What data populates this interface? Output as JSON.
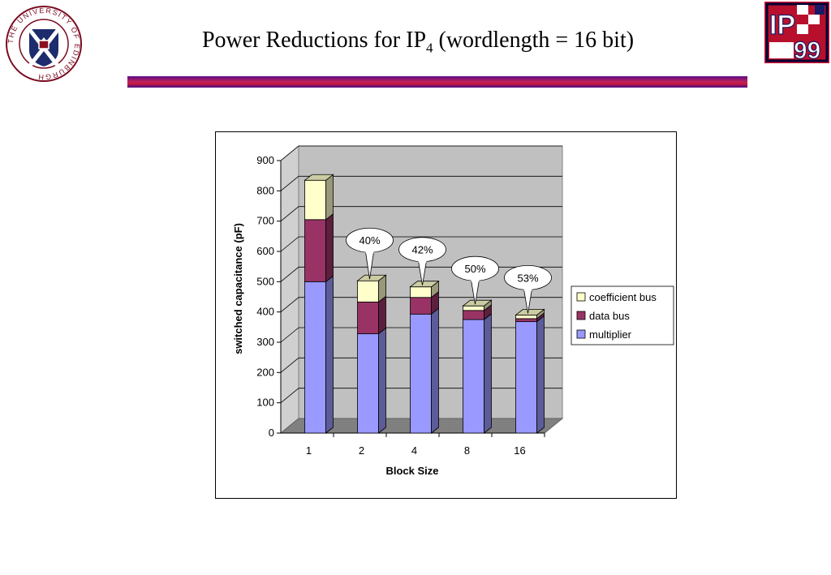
{
  "slide": {
    "title_main": "Power Reductions for IP",
    "title_sub": "4",
    "title_rest": " (wordlength = 16 bit)",
    "left_logo_text": "THE UNIVERSITY OF EDINBURGH",
    "right_logo_text_top": "IP",
    "right_logo_text_bottom": "99"
  },
  "colors": {
    "multiplier": "#9999ff",
    "data_bus": "#993366",
    "coefficient_bus": "#ffffcc",
    "plot_wall": "#c0c0c0",
    "plot_floor": "#808080"
  },
  "chart_data": {
    "type": "bar",
    "stacked": true,
    "three_d": true,
    "categories": [
      "1",
      "2",
      "4",
      "8",
      "16"
    ],
    "series": [
      {
        "name": "multiplier",
        "values": [
          500,
          328,
          393,
          375,
          368
        ]
      },
      {
        "name": "data bus",
        "values": [
          205,
          105,
          55,
          30,
          10
        ]
      },
      {
        "name": "coefficient bus",
        "values": [
          130,
          70,
          35,
          15,
          12
        ]
      }
    ],
    "callouts": [
      "",
      "40%",
      "42%",
      "50%",
      "53%"
    ],
    "xlabel": "Block Size",
    "ylabel": "switched capacitance (pF)",
    "ylim": [
      0,
      900
    ],
    "yticks": [
      "0",
      "100",
      "200",
      "300",
      "400",
      "500",
      "600",
      "700",
      "800",
      "900"
    ],
    "grid": true,
    "legend_position": "right",
    "legend": [
      "coefficient bus",
      "data bus",
      "multiplier"
    ]
  }
}
